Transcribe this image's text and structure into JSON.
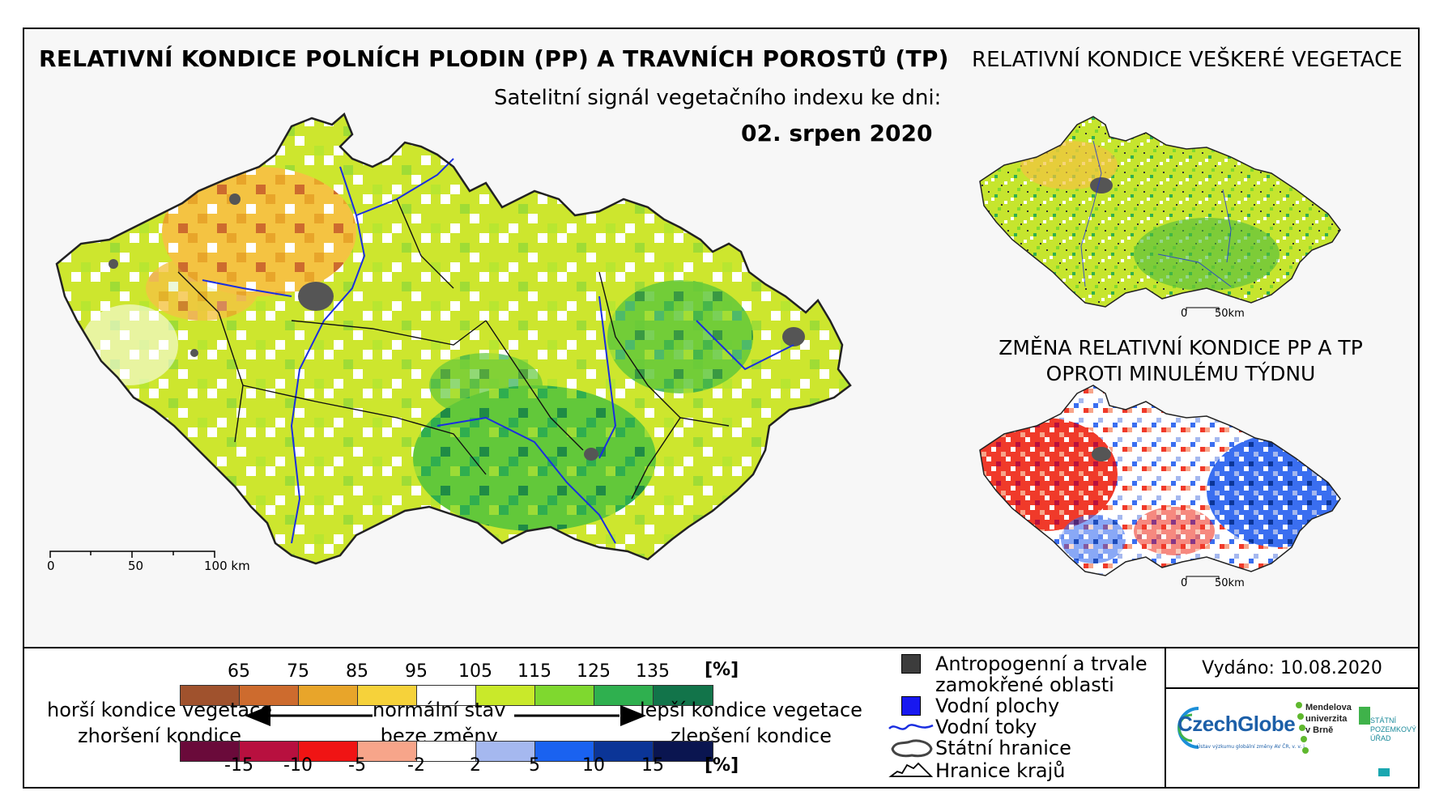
{
  "header": {
    "title": "RELATIVNÍ KONDICE POLNÍCH PLODIN (PP) A TRAVNÍCH POROSTŮ (TP)",
    "subtitle": "Satelitní signál vegetačního indexu ke dni:",
    "date": "02. srpen 2020"
  },
  "side_map_top": {
    "title": "RELATIVNÍ KONDICE VEŠKERÉ VEGETACE",
    "scale_start": "0",
    "scale_end": "50km"
  },
  "side_map_bottom": {
    "title_line1": "ZMĚNA RELATIVNÍ KONDICE PP A TP",
    "title_line2": "OPROTI MINULÉMU TÝDNU",
    "scale_start": "0",
    "scale_end": "50km"
  },
  "main_map": {
    "scale_labels": [
      "0",
      "50",
      "100 km"
    ]
  },
  "legend": {
    "condition_values": [
      "65",
      "75",
      "85",
      "95",
      "105",
      "115",
      "125",
      "135"
    ],
    "condition_unit": "[%]",
    "condition_colors": [
      "#a0522d",
      "#cd6b2e",
      "#e8a52a",
      "#f6d23a",
      "#ffffff",
      "#c9e92a",
      "#7fd82f",
      "#2fb04f",
      "#12744a"
    ],
    "change_values": [
      "-15",
      "-10",
      "-5",
      "-2",
      "2",
      "5",
      "10",
      "15"
    ],
    "change_unit": "[%]",
    "change_colors": [
      "#6a0a3a",
      "#b8103f",
      "#f01414",
      "#f7a58a",
      "#ffffff",
      "#a5b8ef",
      "#1a62f0",
      "#0b3597",
      "#0a1550"
    ],
    "worse_line1": "horší kondice vegetace",
    "worse_line2": "zhoršení kondice",
    "normal_line1": "normální stav",
    "normal_line2": "beze změny",
    "better_line1": "lepší kondice vegetace",
    "better_line2": "zlepšení kondice"
  },
  "symbols": {
    "anthropogenic": "Antropogenní a trvale zamokřené oblasti",
    "anthropogenic_line1": "Antropogenní a trvale",
    "anthropogenic_line2": "zamokřené oblasti",
    "water_bodies": "Vodní plochy",
    "rivers": "Vodní toky",
    "state_border": "Státní hranice",
    "region_border": "Hranice krajů"
  },
  "publication": {
    "released": "Vydáno: 10.08.2020",
    "logo_czechglobe": "CzechGlobe",
    "logo_czechglobe_sub": "Ústav výzkumu globální změny AV ČR, v. v. i.",
    "logo_mendel_line1": "Mendelova",
    "logo_mendel_line2": "univerzita",
    "logo_mendel_line3": "v Brně",
    "logo_spu_line1": "STÁTNÍ",
    "logo_spu_line2": "POZEMKOVÝ",
    "logo_spu_line3": "ÚŘAD"
  }
}
